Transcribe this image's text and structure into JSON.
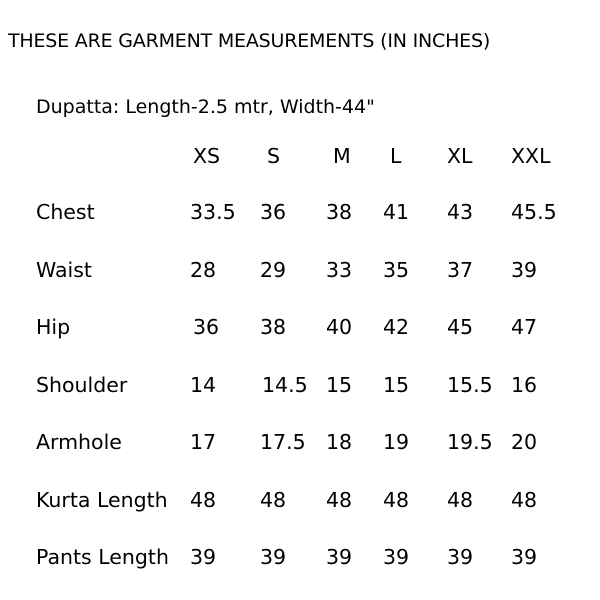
{
  "title": "THESE ARE GARMENT MEASUREMENTS (IN INCHES)",
  "dupatta": "Dupatta: Length-2.5 mtr, Width-44\"",
  "table": {
    "headers": [
      "XS",
      "S",
      "M",
      "L",
      "XL",
      "XXL"
    ],
    "rows": [
      {
        "label": "Chest",
        "values": [
          "33.5",
          "36",
          "38",
          "41",
          "43",
          "45.5"
        ]
      },
      {
        "label": "Waist",
        "values": [
          "28",
          "29",
          "33",
          "35",
          "37",
          "39"
        ]
      },
      {
        "label": "Hip",
        "values": [
          "36",
          "38",
          "40",
          "42",
          "45",
          "47"
        ]
      },
      {
        "label": "Shoulder",
        "values": [
          "14",
          "14.5",
          "15",
          "15",
          "15.5",
          "16"
        ]
      },
      {
        "label": "Armhole",
        "values": [
          "17",
          "17.5",
          "18",
          "19",
          "19.5",
          "20"
        ]
      },
      {
        "label": "Kurta Length",
        "values": [
          "48",
          "48",
          "48",
          "48",
          "48",
          "48"
        ]
      },
      {
        "label": "Pants Length",
        "values": [
          "39",
          "39",
          "39",
          "39",
          "39",
          "39"
        ]
      }
    ]
  }
}
